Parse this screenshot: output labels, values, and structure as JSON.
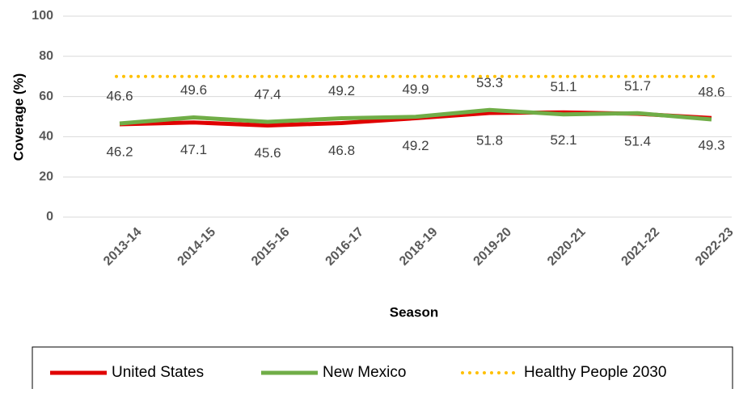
{
  "chart_data": {
    "type": "line",
    "x_label": "Season",
    "y_label": "Coverage (%)",
    "categories": [
      "2013-14",
      "2014-15",
      "2015-16",
      "2016-17",
      "2018-19",
      "2019-20",
      "2020-21",
      "2021-22",
      "2022-23"
    ],
    "series": [
      {
        "name": "United States",
        "color": "#e00000",
        "values": [
          46.2,
          47.1,
          45.6,
          46.8,
          49.2,
          51.8,
          52.1,
          51.4,
          49.3
        ],
        "label_pos": "below"
      },
      {
        "name": "New Mexico",
        "color": "#70ad47",
        "values": [
          46.6,
          49.6,
          47.4,
          49.2,
          49.9,
          53.3,
          51.1,
          51.7,
          48.6
        ],
        "label_pos": "above"
      },
      {
        "name": "Healthy People 2030",
        "color": "#ffc000",
        "dashed": true,
        "values": [
          70,
          70,
          70,
          70,
          70,
          70,
          70,
          70,
          70
        ]
      }
    ],
    "ylim": [
      0,
      100
    ],
    "yticks": [
      0,
      20,
      40,
      60,
      80,
      100
    ],
    "grid": true,
    "legend": "bottom"
  }
}
